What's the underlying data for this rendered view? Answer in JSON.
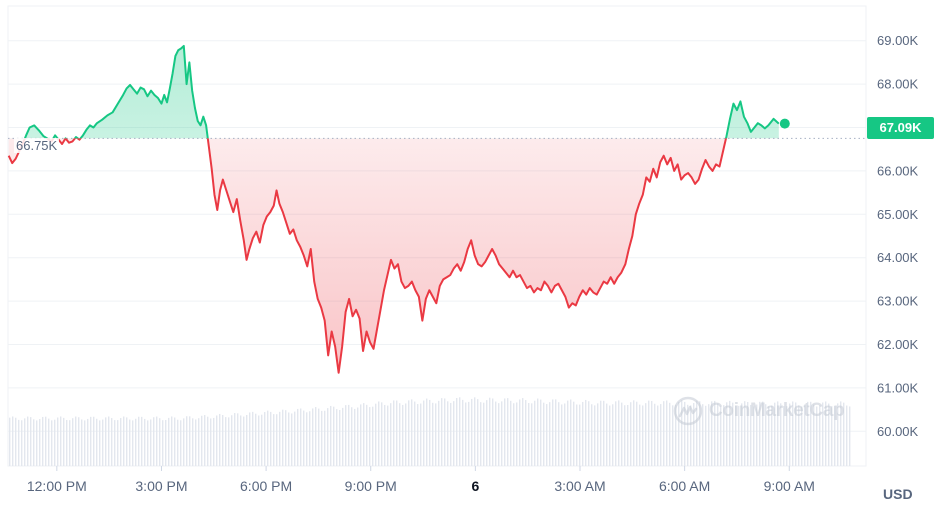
{
  "chart_data": {
    "type": "line",
    "currency": "USD",
    "reference_line": {
      "value": 66750,
      "label": "66.75K"
    },
    "current_price": {
      "value": 67090,
      "label": "67.09K"
    },
    "y_axis": {
      "min": 59200,
      "max": 69800,
      "ticks": [
        {
          "value": 69000,
          "label": "69.00K"
        },
        {
          "value": 68000,
          "label": "68.00K"
        },
        {
          "value": 67000,
          "label": "67.00K"
        },
        {
          "value": 66000,
          "label": "66.00K"
        },
        {
          "value": 65000,
          "label": "65.00K"
        },
        {
          "value": 64000,
          "label": "64.00K"
        },
        {
          "value": 63000,
          "label": "63.00K"
        },
        {
          "value": 62000,
          "label": "62.00K"
        },
        {
          "value": 61000,
          "label": "61.00K"
        },
        {
          "value": 60000,
          "label": "60.00K"
        }
      ]
    },
    "x_axis": {
      "min": 10.6,
      "max": 35.2,
      "ticks": [
        {
          "value": 12,
          "label": "12:00 PM"
        },
        {
          "value": 15,
          "label": "3:00 PM"
        },
        {
          "value": 18,
          "label": "6:00 PM"
        },
        {
          "value": 21,
          "label": "9:00 PM"
        },
        {
          "value": 24,
          "label": "6",
          "bold": true
        },
        {
          "value": 27,
          "label": "3:00 AM"
        },
        {
          "value": 30,
          "label": "6:00 AM"
        },
        {
          "value": 33,
          "label": "9:00 AM"
        }
      ]
    },
    "series": [
      {
        "points": [
          [
            10.62,
            66.35
          ],
          [
            10.72,
            66.18
          ],
          [
            10.82,
            66.28
          ],
          [
            10.92,
            66.45
          ],
          [
            11.02,
            66.62
          ],
          [
            11.12,
            66.82
          ],
          [
            11.22,
            67.0
          ],
          [
            11.35,
            67.05
          ],
          [
            11.5,
            66.92
          ],
          [
            11.62,
            66.8
          ],
          [
            11.72,
            66.75
          ],
          [
            11.85,
            66.68
          ],
          [
            11.95,
            66.82
          ],
          [
            12.05,
            66.72
          ],
          [
            12.15,
            66.62
          ],
          [
            12.25,
            66.75
          ],
          [
            12.35,
            66.65
          ],
          [
            12.45,
            66.68
          ],
          [
            12.55,
            66.78
          ],
          [
            12.65,
            66.72
          ],
          [
            12.75,
            66.82
          ],
          [
            12.85,
            66.95
          ],
          [
            12.95,
            67.05
          ],
          [
            13.05,
            67.0
          ],
          [
            13.15,
            67.1
          ],
          [
            13.3,
            67.18
          ],
          [
            13.45,
            67.28
          ],
          [
            13.6,
            67.35
          ],
          [
            13.75,
            67.55
          ],
          [
            13.9,
            67.75
          ],
          [
            14.0,
            67.9
          ],
          [
            14.1,
            67.98
          ],
          [
            14.2,
            67.88
          ],
          [
            14.3,
            67.78
          ],
          [
            14.4,
            67.92
          ],
          [
            14.5,
            67.88
          ],
          [
            14.6,
            67.72
          ],
          [
            14.7,
            67.85
          ],
          [
            14.8,
            67.75
          ],
          [
            14.9,
            67.68
          ],
          [
            15.0,
            67.55
          ],
          [
            15.08,
            67.75
          ],
          [
            15.16,
            67.58
          ],
          [
            15.24,
            67.9
          ],
          [
            15.32,
            68.25
          ],
          [
            15.4,
            68.65
          ],
          [
            15.48,
            68.78
          ],
          [
            15.56,
            68.82
          ],
          [
            15.64,
            68.88
          ],
          [
            15.72,
            68.0
          ],
          [
            15.8,
            68.5
          ],
          [
            15.88,
            67.85
          ],
          [
            15.96,
            67.45
          ],
          [
            16.04,
            67.15
          ],
          [
            16.12,
            67.05
          ],
          [
            16.2,
            67.25
          ],
          [
            16.28,
            67.05
          ],
          [
            16.36,
            66.55
          ],
          [
            16.44,
            66.05
          ],
          [
            16.52,
            65.45
          ],
          [
            16.6,
            65.1
          ],
          [
            16.68,
            65.55
          ],
          [
            16.76,
            65.8
          ],
          [
            16.86,
            65.55
          ],
          [
            16.96,
            65.3
          ],
          [
            17.06,
            65.05
          ],
          [
            17.16,
            65.35
          ],
          [
            17.26,
            64.85
          ],
          [
            17.36,
            64.4
          ],
          [
            17.44,
            63.95
          ],
          [
            17.52,
            64.2
          ],
          [
            17.62,
            64.45
          ],
          [
            17.72,
            64.6
          ],
          [
            17.82,
            64.35
          ],
          [
            17.92,
            64.75
          ],
          [
            18.02,
            64.95
          ],
          [
            18.12,
            65.05
          ],
          [
            18.22,
            65.2
          ],
          [
            18.3,
            65.55
          ],
          [
            18.38,
            65.25
          ],
          [
            18.48,
            65.05
          ],
          [
            18.58,
            64.8
          ],
          [
            18.68,
            64.55
          ],
          [
            18.78,
            64.65
          ],
          [
            18.88,
            64.4
          ],
          [
            18.98,
            64.25
          ],
          [
            19.08,
            64.05
          ],
          [
            19.18,
            63.8
          ],
          [
            19.28,
            64.2
          ],
          [
            19.38,
            63.45
          ],
          [
            19.48,
            63.05
          ],
          [
            19.58,
            62.85
          ],
          [
            19.68,
            62.55
          ],
          [
            19.78,
            61.75
          ],
          [
            19.88,
            62.3
          ],
          [
            19.98,
            61.95
          ],
          [
            20.08,
            61.35
          ],
          [
            20.18,
            61.95
          ],
          [
            20.28,
            62.75
          ],
          [
            20.38,
            63.05
          ],
          [
            20.48,
            62.65
          ],
          [
            20.58,
            62.8
          ],
          [
            20.68,
            62.6
          ],
          [
            20.78,
            61.85
          ],
          [
            20.88,
            62.3
          ],
          [
            20.98,
            62.05
          ],
          [
            21.08,
            61.9
          ],
          [
            21.18,
            62.35
          ],
          [
            21.28,
            62.8
          ],
          [
            21.38,
            63.25
          ],
          [
            21.48,
            63.6
          ],
          [
            21.58,
            63.95
          ],
          [
            21.68,
            63.75
          ],
          [
            21.78,
            63.85
          ],
          [
            21.88,
            63.45
          ],
          [
            21.98,
            63.3
          ],
          [
            22.08,
            63.35
          ],
          [
            22.18,
            63.45
          ],
          [
            22.28,
            63.25
          ],
          [
            22.38,
            63.1
          ],
          [
            22.48,
            62.55
          ],
          [
            22.58,
            63.05
          ],
          [
            22.68,
            63.25
          ],
          [
            22.78,
            63.1
          ],
          [
            22.88,
            62.95
          ],
          [
            22.98,
            63.35
          ],
          [
            23.08,
            63.5
          ],
          [
            23.18,
            63.55
          ],
          [
            23.28,
            63.6
          ],
          [
            23.38,
            63.75
          ],
          [
            23.48,
            63.85
          ],
          [
            23.58,
            63.7
          ],
          [
            23.68,
            63.9
          ],
          [
            23.78,
            64.2
          ],
          [
            23.88,
            64.4
          ],
          [
            23.98,
            64.05
          ],
          [
            24.08,
            63.85
          ],
          [
            24.18,
            63.8
          ],
          [
            24.28,
            63.9
          ],
          [
            24.38,
            64.05
          ],
          [
            24.48,
            64.2
          ],
          [
            24.58,
            64.05
          ],
          [
            24.68,
            63.85
          ],
          [
            24.78,
            63.75
          ],
          [
            24.88,
            63.65
          ],
          [
            24.98,
            63.55
          ],
          [
            25.08,
            63.7
          ],
          [
            25.18,
            63.55
          ],
          [
            25.28,
            63.6
          ],
          [
            25.38,
            63.45
          ],
          [
            25.48,
            63.3
          ],
          [
            25.58,
            63.35
          ],
          [
            25.68,
            63.2
          ],
          [
            25.78,
            63.3
          ],
          [
            25.88,
            63.25
          ],
          [
            25.98,
            63.45
          ],
          [
            26.08,
            63.35
          ],
          [
            26.18,
            63.2
          ],
          [
            26.28,
            63.35
          ],
          [
            26.38,
            63.4
          ],
          [
            26.48,
            63.25
          ],
          [
            26.58,
            63.1
          ],
          [
            26.68,
            62.85
          ],
          [
            26.78,
            62.95
          ],
          [
            26.88,
            62.9
          ],
          [
            26.98,
            63.1
          ],
          [
            27.08,
            63.25
          ],
          [
            27.18,
            63.15
          ],
          [
            27.28,
            63.3
          ],
          [
            27.38,
            63.2
          ],
          [
            27.48,
            63.15
          ],
          [
            27.58,
            63.3
          ],
          [
            27.68,
            63.45
          ],
          [
            27.78,
            63.4
          ],
          [
            27.88,
            63.55
          ],
          [
            27.98,
            63.4
          ],
          [
            28.08,
            63.55
          ],
          [
            28.18,
            63.65
          ],
          [
            28.3,
            63.85
          ],
          [
            28.4,
            64.2
          ],
          [
            28.5,
            64.5
          ],
          [
            28.6,
            65.0
          ],
          [
            28.7,
            65.25
          ],
          [
            28.8,
            65.45
          ],
          [
            28.9,
            65.85
          ],
          [
            29.0,
            65.75
          ],
          [
            29.1,
            66.05
          ],
          [
            29.2,
            65.85
          ],
          [
            29.3,
            66.2
          ],
          [
            29.4,
            66.35
          ],
          [
            29.5,
            66.15
          ],
          [
            29.6,
            66.3
          ],
          [
            29.7,
            66.0
          ],
          [
            29.8,
            66.15
          ],
          [
            29.9,
            65.8
          ],
          [
            30.0,
            65.9
          ],
          [
            30.1,
            65.95
          ],
          [
            30.2,
            65.85
          ],
          [
            30.3,
            65.7
          ],
          [
            30.4,
            65.8
          ],
          [
            30.5,
            66.05
          ],
          [
            30.6,
            66.25
          ],
          [
            30.7,
            66.1
          ],
          [
            30.8,
            66.0
          ],
          [
            30.9,
            66.15
          ],
          [
            31.0,
            66.1
          ],
          [
            31.1,
            66.45
          ],
          [
            31.2,
            66.8
          ],
          [
            31.3,
            67.2
          ],
          [
            31.4,
            67.55
          ],
          [
            31.5,
            67.4
          ],
          [
            31.6,
            67.6
          ],
          [
            31.7,
            67.25
          ],
          [
            31.8,
            67.1
          ],
          [
            31.9,
            66.9
          ],
          [
            32.0,
            67.0
          ],
          [
            32.1,
            67.1
          ],
          [
            32.2,
            67.05
          ],
          [
            32.3,
            66.98
          ],
          [
            32.4,
            67.05
          ],
          [
            32.55,
            67.2
          ],
          [
            32.7,
            67.09
          ]
        ]
      }
    ],
    "volume": {
      "ratio_min": 0.08,
      "ratio_max": 0.88,
      "profile": [
        [
          10.6,
          0.92
        ],
        [
          15.5,
          0.92
        ],
        [
          16.5,
          0.96
        ],
        [
          18.5,
          1.05
        ],
        [
          20.5,
          1.15
        ],
        [
          21.5,
          1.22
        ],
        [
          23.5,
          1.28
        ],
        [
          25.5,
          1.26
        ],
        [
          27.5,
          1.22
        ],
        [
          30.0,
          1.22
        ],
        [
          32.5,
          1.2
        ],
        [
          35.2,
          1.2
        ]
      ]
    }
  },
  "watermark": {
    "text": "CoinMarketCap"
  },
  "axis_unit": "USD",
  "colors": {
    "up": "#16c784",
    "down": "#ea3943",
    "grid": "#eff2f5",
    "axis_text": "#58667e"
  }
}
